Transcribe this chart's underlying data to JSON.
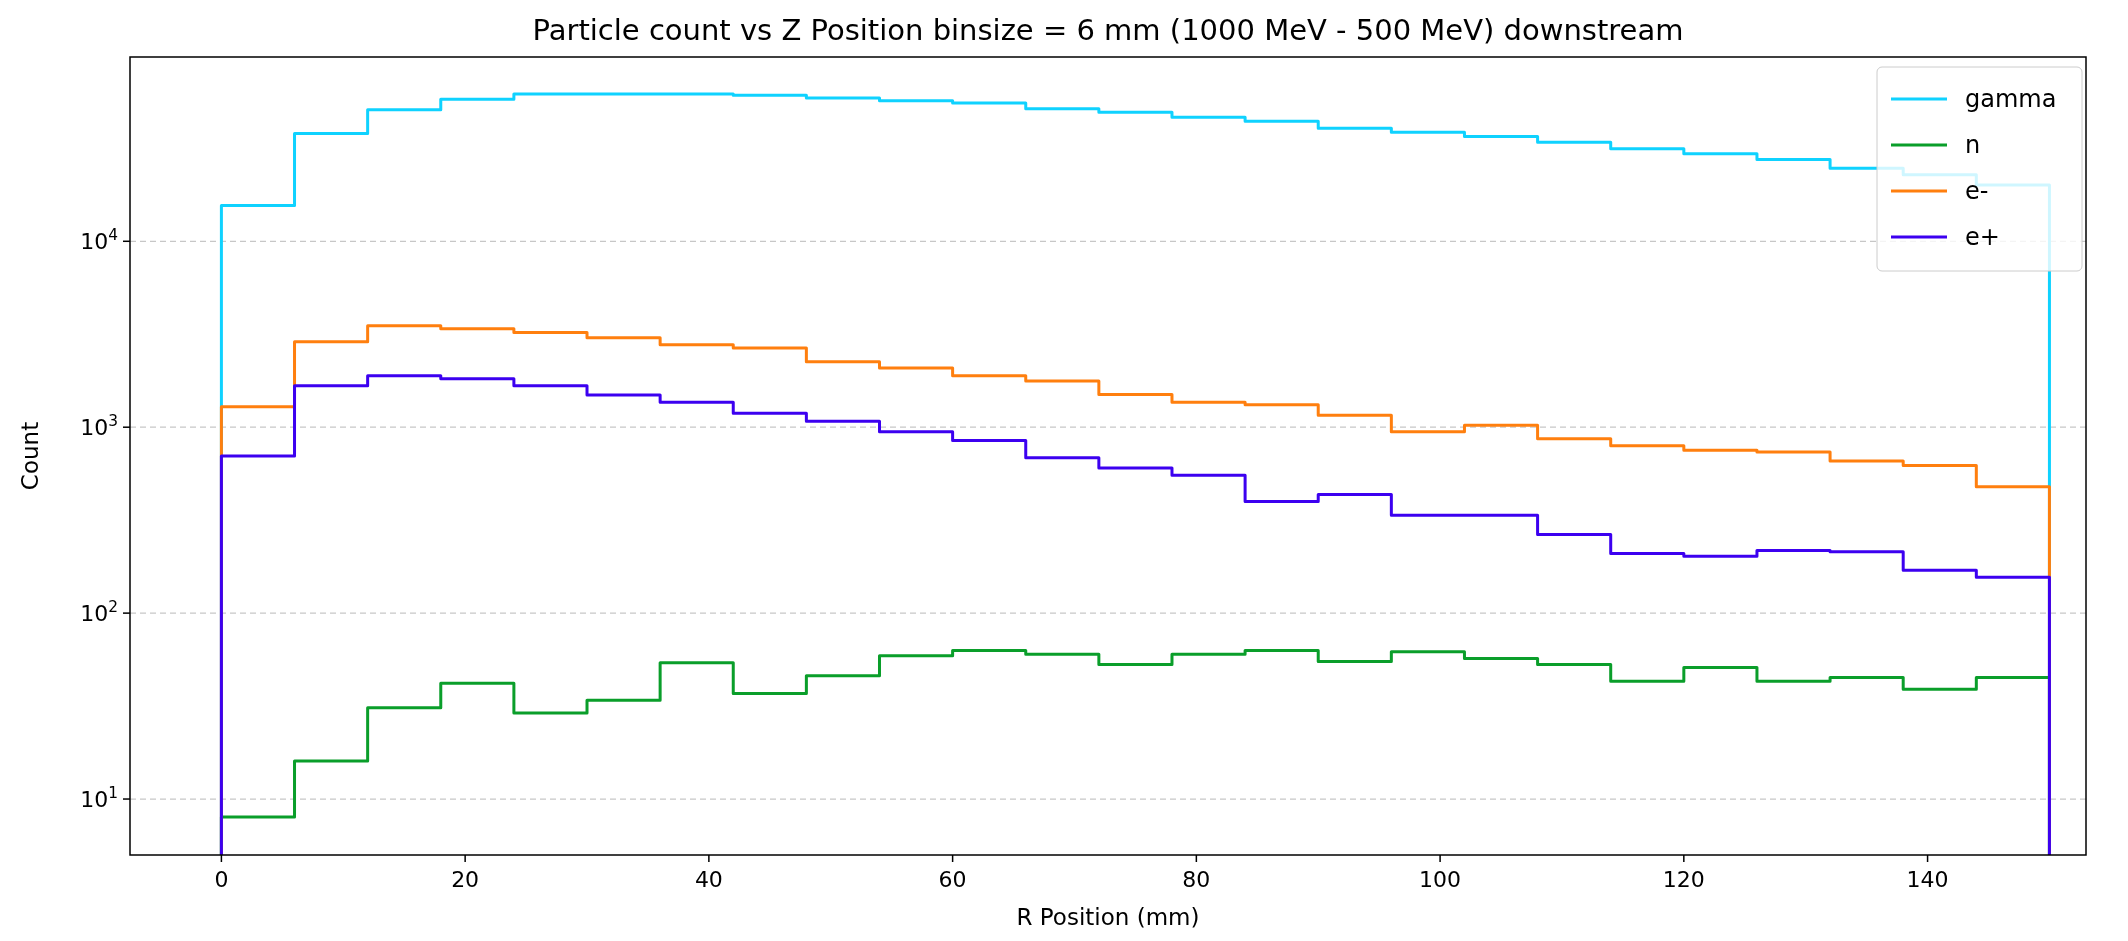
{
  "chart_data": {
    "type": "histogram",
    "title": "Particle count vs Z Position binsize = 6 mm (1000 MeV - 500 MeV) downstream",
    "xlabel": "R Position (mm)",
    "ylabel": "Count",
    "bins": [
      0,
      6,
      12,
      18,
      24,
      30,
      36,
      42,
      48,
      54,
      60,
      66,
      72,
      78,
      84,
      90,
      96,
      102,
      108,
      114,
      120,
      126,
      132,
      138,
      144,
      150
    ],
    "series": [
      {
        "name": "gamma",
        "color": "#0fd2ff",
        "values": [
          15600,
          38000,
          51000,
          58000,
          62000,
          62000,
          62000,
          61000,
          59000,
          57000,
          55500,
          51600,
          49500,
          46400,
          44200,
          40500,
          38600,
          36600,
          34100,
          31500,
          29600,
          27500,
          24700,
          22800,
          20100
        ]
      },
      {
        "name": "n",
        "color": "#0a9e2a",
        "values": [
          8,
          16,
          31,
          42,
          29,
          34,
          54,
          37,
          46,
          59,
          63,
          60,
          53,
          60,
          63,
          55,
          62,
          57,
          53,
          43,
          51,
          43,
          45,
          39,
          45
        ]
      },
      {
        "name": "e-",
        "color": "#ff7f0e",
        "values": [
          1290,
          2880,
          3510,
          3380,
          3230,
          3030,
          2780,
          2670,
          2250,
          2080,
          1890,
          1770,
          1500,
          1360,
          1320,
          1160,
          945,
          1025,
          867,
          795,
          752,
          735,
          658,
          622,
          479
        ]
      },
      {
        "name": "e+",
        "color": "#3c00f0",
        "values": [
          700,
          1670,
          1890,
          1820,
          1670,
          1490,
          1360,
          1190,
          1075,
          946,
          847,
          684,
          603,
          552,
          399,
          435,
          336,
          336,
          265,
          209,
          202,
          217,
          214,
          170,
          156
        ]
      }
    ],
    "xlim": [
      -7.5,
      153
    ],
    "xticks": [
      0,
      20,
      40,
      60,
      80,
      100,
      120,
      140
    ],
    "ylim": [
      5,
      98000
    ],
    "yticks": [
      {
        "value": 10,
        "label": "10$^{1}$"
      },
      {
        "value": 100,
        "label": "10$^{2}$"
      },
      {
        "value": 1000,
        "label": "10$^{3}$"
      },
      {
        "value": 10000,
        "label": "10$^{4}$"
      }
    ],
    "log": true,
    "grid": "y",
    "legend": "top right"
  }
}
